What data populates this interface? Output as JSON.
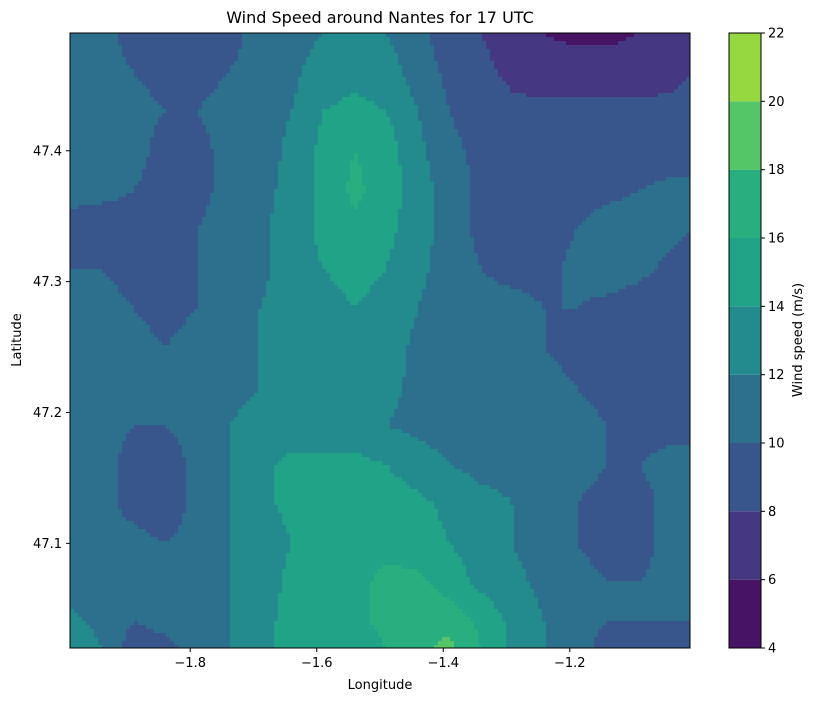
{
  "chart_data": {
    "type": "heatmap",
    "subtype": "filled-contour",
    "title": "Wind Speed around Nantes for 17 UTC",
    "xlabel": "Longitude",
    "ylabel": "Latitude",
    "xlim": [
      -1.99,
      -1.01
    ],
    "ylim": [
      47.02,
      47.49
    ],
    "x_ticks": [
      -1.8,
      -1.6,
      -1.4,
      -1.2
    ],
    "x_tick_labels": [
      "−1.8",
      "−1.6",
      "−1.4",
      "−1.2"
    ],
    "y_ticks": [
      47.1,
      47.2,
      47.3,
      47.4
    ],
    "y_tick_labels": [
      "47.1",
      "47.2",
      "47.3",
      "47.4"
    ],
    "colormap": "viridis",
    "colorbar": {
      "label": "Wind speed (m/s)",
      "levels": [
        4,
        6,
        8,
        10,
        12,
        14,
        16,
        18,
        20,
        22
      ],
      "tick_labels": [
        "4",
        "6",
        "8",
        "10",
        "12",
        "14",
        "16",
        "18",
        "20",
        "22"
      ],
      "colors": [
        "#471365",
        "#453781",
        "#39568c",
        "#2d708e",
        "#238a8d",
        "#20a386",
        "#29af7f",
        "#55c667",
        "#95d840",
        "#dce319"
      ]
    },
    "grid": false,
    "lons": [
      -1.99,
      -1.94,
      -1.89,
      -1.84,
      -1.79,
      -1.74,
      -1.69,
      -1.64,
      -1.59,
      -1.54,
      -1.49,
      -1.44,
      -1.39,
      -1.34,
      -1.29,
      -1.24,
      -1.19,
      -1.14,
      -1.09,
      -1.04,
      -1.01
    ],
    "lats": [
      47.49,
      47.46,
      47.43,
      47.4,
      47.37,
      47.34,
      47.31,
      47.28,
      47.25,
      47.22,
      47.19,
      47.16,
      47.13,
      47.1,
      47.07,
      47.04,
      47.02
    ],
    "values": [
      [
        10.5,
        10.5,
        9.5,
        9.0,
        8.5,
        9.5,
        10.5,
        11.0,
        12.0,
        12.5,
        12.0,
        10.5,
        9.0,
        8.0,
        7.0,
        6.0,
        5.5,
        5.5,
        6.0,
        6.5,
        7.0
      ],
      [
        10.5,
        10.5,
        10.0,
        9.5,
        9.5,
        10.0,
        10.5,
        11.5,
        13.0,
        13.5,
        13.0,
        11.0,
        9.5,
        8.5,
        7.5,
        7.0,
        7.0,
        7.0,
        7.0,
        7.5,
        8.0
      ],
      [
        10.5,
        10.5,
        10.5,
        10.0,
        10.0,
        10.5,
        11.0,
        12.0,
        14.0,
        14.5,
        14.0,
        12.0,
        10.0,
        9.0,
        8.5,
        8.5,
        8.5,
        8.5,
        8.5,
        8.5,
        8.5
      ],
      [
        10.5,
        10.5,
        10.5,
        9.5,
        9.5,
        10.5,
        11.0,
        12.5,
        14.5,
        16.0,
        15.0,
        12.5,
        10.5,
        9.5,
        9.0,
        9.0,
        9.0,
        9.0,
        9.0,
        9.0,
        9.0
      ],
      [
        10.5,
        10.5,
        10.0,
        9.5,
        9.5,
        10.5,
        11.5,
        12.5,
        14.5,
        16.5,
        15.0,
        13.0,
        11.0,
        9.5,
        9.0,
        9.0,
        9.0,
        9.5,
        10.0,
        10.5,
        10.5
      ],
      [
        9.5,
        9.0,
        9.5,
        9.5,
        10.0,
        10.5,
        11.5,
        13.0,
        14.5,
        15.5,
        14.5,
        13.0,
        11.0,
        9.5,
        9.0,
        9.0,
        10.0,
        11.0,
        11.0,
        10.5,
        10.0
      ],
      [
        10.0,
        10.0,
        9.5,
        9.5,
        10.0,
        10.5,
        11.5,
        13.0,
        14.0,
        14.5,
        14.0,
        12.5,
        11.0,
        10.0,
        9.5,
        9.5,
        10.5,
        11.0,
        10.5,
        9.5,
        9.0
      ],
      [
        10.5,
        10.5,
        10.0,
        9.5,
        10.0,
        10.5,
        12.0,
        13.0,
        13.5,
        14.0,
        13.5,
        12.0,
        11.0,
        10.5,
        10.5,
        10.0,
        10.0,
        9.5,
        9.0,
        8.5,
        8.5
      ],
      [
        10.5,
        10.5,
        10.5,
        10.0,
        10.5,
        11.0,
        12.0,
        12.5,
        13.0,
        14.0,
        13.0,
        11.5,
        11.0,
        11.0,
        11.0,
        10.0,
        9.5,
        9.0,
        8.5,
        8.0,
        8.0
      ],
      [
        10.5,
        10.5,
        10.5,
        10.5,
        10.5,
        11.5,
        12.0,
        12.5,
        13.0,
        13.5,
        12.5,
        11.5,
        11.0,
        11.0,
        11.0,
        10.5,
        10.0,
        9.5,
        9.0,
        8.5,
        8.5
      ],
      [
        10.5,
        10.5,
        10.0,
        10.0,
        10.5,
        12.0,
        12.5,
        13.0,
        13.0,
        13.0,
        12.0,
        11.5,
        11.0,
        11.0,
        11.0,
        11.0,
        10.5,
        10.0,
        9.5,
        9.5,
        9.5
      ],
      [
        10.5,
        10.5,
        9.5,
        9.0,
        10.5,
        12.0,
        13.5,
        14.5,
        14.5,
        14.5,
        14.0,
        13.0,
        12.0,
        11.5,
        11.5,
        11.0,
        10.5,
        10.0,
        10.0,
        10.5,
        10.5
      ],
      [
        10.5,
        10.5,
        9.5,
        9.0,
        10.5,
        12.0,
        13.5,
        14.5,
        14.5,
        14.5,
        15.0,
        14.5,
        13.5,
        12.5,
        12.0,
        11.0,
        10.0,
        9.5,
        9.5,
        10.5,
        11.0
      ],
      [
        10.5,
        10.5,
        10.5,
        10.0,
        10.5,
        12.0,
        13.0,
        14.0,
        14.5,
        15.0,
        15.5,
        15.0,
        14.0,
        13.0,
        12.0,
        11.0,
        10.0,
        9.5,
        9.5,
        10.5,
        11.0
      ],
      [
        11.0,
        10.5,
        10.5,
        10.5,
        11.0,
        12.0,
        13.0,
        14.5,
        15.0,
        15.5,
        16.5,
        16.5,
        15.0,
        13.5,
        12.5,
        11.5,
        10.5,
        10.0,
        10.0,
        10.5,
        11.0
      ],
      [
        12.5,
        11.5,
        10.0,
        10.5,
        11.0,
        12.0,
        13.5,
        14.5,
        15.0,
        15.5,
        16.5,
        17.5,
        17.5,
        15.5,
        13.5,
        12.0,
        10.5,
        10.0,
        10.0,
        10.0,
        10.0
      ],
      [
        13.5,
        12.0,
        9.0,
        9.5,
        10.5,
        12.0,
        13.5,
        14.5,
        14.5,
        15.0,
        16.0,
        17.5,
        18.5,
        16.0,
        13.5,
        12.0,
        10.5,
        9.5,
        9.5,
        9.5,
        9.5
      ]
    ]
  }
}
